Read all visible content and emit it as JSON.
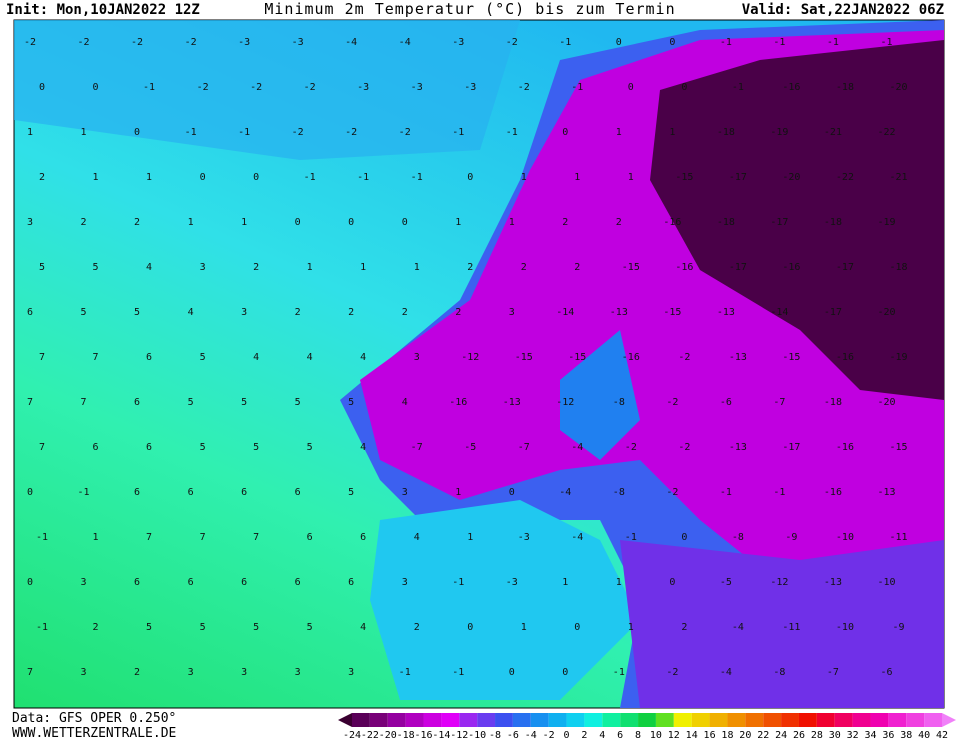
{
  "header": {
    "init": "Init: Mon,10JAN2022 12Z",
    "title": "Minimum 2m Temperatur (°C) bis zum Termin",
    "valid": "Valid: Sat,22JAN2022 06Z"
  },
  "footer": {
    "data": "Data: GFS OPER 0.250°",
    "site": "WWW.WETTERZENTRALE.DE"
  },
  "colorbar": {
    "ticks": [
      -24,
      -22,
      -20,
      -18,
      -16,
      -14,
      -12,
      -10,
      -8,
      -6,
      -4,
      -2,
      0,
      2,
      4,
      6,
      8,
      10,
      12,
      14,
      16,
      18,
      20,
      22,
      24,
      26,
      28,
      30,
      32,
      34,
      36,
      38,
      40,
      42
    ],
    "colors": [
      "#3a0030",
      "#5a0058",
      "#780078",
      "#9400a0",
      "#b000c0",
      "#cc00e0",
      "#e000f8",
      "#9a28f0",
      "#6a3cf0",
      "#3c50f0",
      "#2870f0",
      "#1890f0",
      "#10b0f0",
      "#10d0f0",
      "#10f0e0",
      "#10f0a0",
      "#10e070",
      "#10d040",
      "#60e020",
      "#f0f000",
      "#f0d000",
      "#f0b000",
      "#f09000",
      "#f07000",
      "#f05000",
      "#f03000",
      "#f01000",
      "#f00030",
      "#f00060",
      "#f00090",
      "#f000b0",
      "#f020d0",
      "#f040e0",
      "#f060f0",
      "#f080f8"
    ]
  },
  "map_labels": [
    [
      -2,
      -2,
      -2,
      -2,
      -3,
      -3,
      -4,
      -4,
      -3,
      -2,
      -1,
      0,
      0,
      -1,
      -1,
      -1,
      -1
    ],
    [
      0,
      0,
      -1,
      -2,
      -2,
      -2,
      -3,
      -3,
      -3,
      -2,
      -1,
      0,
      0,
      -1,
      -16,
      -18,
      -20
    ],
    [
      1,
      1,
      0,
      -1,
      -1,
      -2,
      -2,
      -2,
      -1,
      -1,
      0,
      1,
      1,
      -18,
      -19,
      -21,
      -22
    ],
    [
      2,
      1,
      1,
      0,
      0,
      -1,
      -1,
      -1,
      0,
      1,
      1,
      1,
      -15,
      -17,
      -20,
      -22,
      -21
    ],
    [
      3,
      2,
      2,
      1,
      1,
      0,
      0,
      0,
      1,
      1,
      2,
      2,
      -16,
      -18,
      -17,
      -18,
      -19
    ],
    [
      5,
      5,
      4,
      3,
      2,
      1,
      1,
      1,
      2,
      2,
      2,
      -15,
      -16,
      -17,
      -16,
      -17,
      -18
    ],
    [
      6,
      5,
      5,
      4,
      3,
      2,
      2,
      2,
      2,
      3,
      -14,
      -13,
      -15,
      -13,
      -14,
      -17,
      -20
    ],
    [
      7,
      7,
      6,
      5,
      4,
      4,
      4,
      3,
      -12,
      -15,
      -15,
      -16,
      -2,
      -13,
      -15,
      -16,
      -19
    ],
    [
      7,
      7,
      6,
      5,
      5,
      5,
      5,
      4,
      -16,
      -13,
      -12,
      -8,
      -2,
      -6,
      -7,
      -18,
      -20
    ],
    [
      7,
      6,
      6,
      5,
      5,
      5,
      4,
      -7,
      -5,
      -7,
      -4,
      -2,
      -2,
      -13,
      -17,
      -16,
      -15
    ],
    [
      0,
      -1,
      6,
      6,
      6,
      6,
      5,
      3,
      1,
      0,
      -4,
      -8,
      -2,
      -1,
      -1,
      -16,
      -13
    ],
    [
      -1,
      1,
      7,
      7,
      7,
      6,
      6,
      4,
      1,
      -3,
      -4,
      -1,
      0,
      -8,
      -9,
      -10,
      -11
    ],
    [
      0,
      3,
      6,
      6,
      6,
      6,
      6,
      3,
      -1,
      -3,
      1,
      1,
      0,
      -5,
      -12,
      -13,
      -10
    ],
    [
      -1,
      2,
      5,
      5,
      5,
      5,
      4,
      2,
      0,
      1,
      0,
      1,
      2,
      -4,
      -11,
      -10,
      -9
    ],
    [
      7,
      3,
      2,
      3,
      3,
      3,
      3,
      -1,
      -1,
      0,
      0,
      -1,
      -2,
      -4,
      -8,
      -7,
      -6
    ]
  ]
}
